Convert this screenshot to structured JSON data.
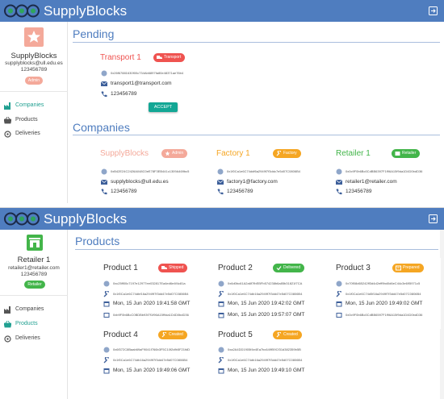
{
  "app": {
    "title": "SupplyBlocks",
    "brand_color": "#4f7dbf",
    "accent_color": "#21a091"
  },
  "view1": {
    "user": {
      "name": "SupplyBlocks",
      "email": "supplyblocks@ull.edu.es",
      "phone": "123456789",
      "role": "Admin",
      "avatar_icon": "star-icon",
      "avatar_color": "#f4a99a"
    },
    "nav": [
      {
        "label": "Companies",
        "icon": "factory-icon",
        "active": true
      },
      {
        "label": "Products",
        "icon": "basket-icon",
        "active": false
      },
      {
        "label": "Deliveries",
        "icon": "delivery-icon",
        "active": false
      }
    ],
    "pending": {
      "title": "Pending",
      "card": {
        "name": "Transport 1",
        "role": "Transport",
        "hash": "0x26f67881630f00c734Ab6897fa80e48371ae76b4",
        "email": "transport1@transport.com",
        "phone": "123456789",
        "action": "ACCEPT"
      }
    },
    "companies": {
      "title": "Companies",
      "items": [
        {
          "name": "SupplyBlocks",
          "role": "Admin",
          "hash": "0xB42E24C2426A048C0eE78F3EB441c1309A469bc5",
          "email": "supplyblocks@ull.edu.es",
          "phone": "123456789",
          "color": "#f4a99a"
        },
        {
          "name": "Factory 1",
          "role": "Factory",
          "hash": "0x1f0Ca1e6C74ddf6a2949f7f3ddc7e5d07C0806B4",
          "email": "factory1@factory.com",
          "phone": "123456789",
          "color": "#f5a623"
        },
        {
          "name": "Retailer 1",
          "role": "Retailer",
          "hash": "0x0c9F0b6Bc0CdBB6397F1f96A15f9da1D4D0bdD36",
          "email": "retailer1@retailer.com",
          "phone": "123456789",
          "color": "#43b54a"
        }
      ]
    }
  },
  "view2": {
    "user": {
      "name": "Retailer 1",
      "email": "retailer1@retailer.com",
      "phone": "123456789",
      "role": "Retailer",
      "avatar_icon": "store-icon",
      "avatar_color": "#43b54a"
    },
    "nav": [
      {
        "label": "Companies",
        "icon": "factory-icon",
        "active": false
      },
      {
        "label": "Products",
        "icon": "basket-icon",
        "active": true
      },
      {
        "label": "Deliveries",
        "icon": "delivery-icon",
        "active": false
      }
    ],
    "products": {
      "title": "Products",
      "items": [
        {
          "name": "Product 1",
          "status": "Shipped",
          "status_color": "#ef5350",
          "hash": "0xc25ff00c7197e12977ee032817Ea4ed6e4f4c81a",
          "maker": "0x1f0Ca1e6C74dbf16a2949f7f3dd47e5d07C0806B4",
          "date": "Mon, 15 Jun 2020 19:41:58 GMT",
          "owner": "0xb9F0b6BcC0BDBb93f7f1f96A15f9da1D4D0bdD36"
        },
        {
          "name": "Product 2",
          "status": "Delivered",
          "status_color": "#43b54a",
          "hash": "0x6d0bc61A2a6f7fbEBFb574238b6a85b31821f7CA",
          "maker": "0x1f0Ca1e6C74db16a2949f7f3dd47e5d07C0806B4",
          "date": "Mon, 15 Jun 2020 19:42:02 GMT",
          "delivery_date": "Mon, 15 Jun 2020 19:57:07 GMT"
        },
        {
          "name": "Product 3",
          "status": "Prepared",
          "status_color": "#f5a623",
          "hash": "0x70f08d65242ff3d4d2eff9bd0d6eC44c3e695971c5",
          "maker": "0x1f0Ca1e6C74d5f16a2949f7f3dd47e5d07C0806B4",
          "date": "Mon, 15 Jun 2020 19:49:02 GMT",
          "owner": "0x0c9F0b6Bc0CdBB6597F1f96A15f9da1D4D0bdD36"
        },
        {
          "name": "Product 4",
          "status": "Created",
          "status_color": "#f5a623",
          "hash": "0x6f372C8Baab69aF9041f766b3F5C10f2dfb5F21fdD",
          "maker": "0x1f0Ca1e6C74db16a2949f7f3dd47e5d07C0806B4",
          "date": "Mon, 15 Jun 2020 19:49:06 GMT"
        },
        {
          "name": "Product 5",
          "status": "Created",
          "status_color": "#f5a623",
          "hash": "0xa2A4DD1905f4e4Ea7bc649f59Cf31d382359b5B",
          "maker": "0x1f0Ca1e6C74db16a2949f7f3dd47e5d07C0806B4",
          "date": "Mon, 15 Jun 2020 19:49:10 GMT"
        }
      ]
    }
  }
}
